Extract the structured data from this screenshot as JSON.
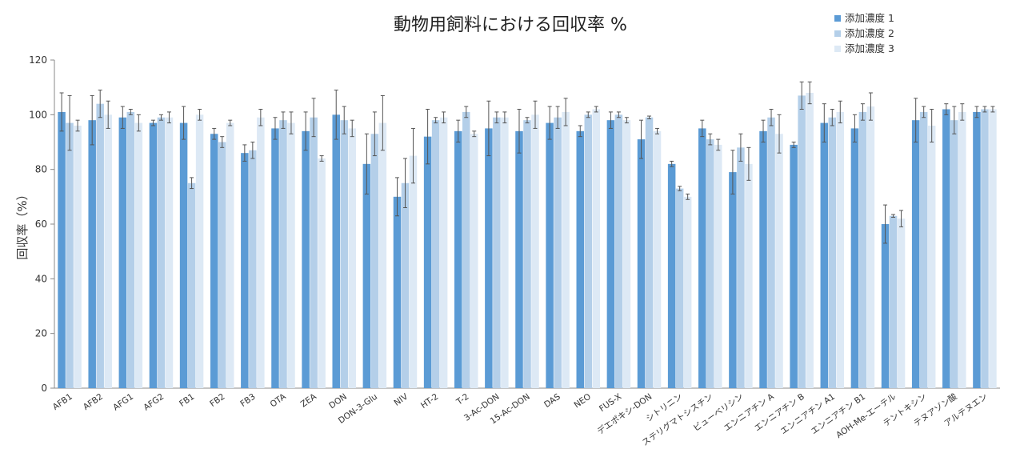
{
  "chart_data": {
    "type": "bar",
    "title": "動物用飼料における回収率 %",
    "xlabel": "",
    "ylabel": "回収率（%）",
    "ylim": [
      0,
      120
    ],
    "yticks": [
      0,
      20,
      40,
      60,
      80,
      100,
      120
    ],
    "grid": false,
    "legend_position": "top-right",
    "colors": [
      "#5b9bd5",
      "#b4cfe9",
      "#dde9f5"
    ],
    "error_color": "#555555",
    "categories": [
      "AFB1",
      "AFB2",
      "AFG1",
      "AFG2",
      "FB1",
      "FB2",
      "FB3",
      "OTA",
      "ZEA",
      "DON",
      "DON-3-Glu",
      "NIV",
      "HT-2",
      "T-2",
      "3-Ac-DON",
      "15-Ac-DON",
      "DAS",
      "NEO",
      "FUS-X",
      "デエポキシ-DON",
      "シトリニン",
      "ステリグマトシスチン",
      "ビューベリシン",
      "エンニアチン A",
      "エンニアチン B",
      "エンニアチン A1",
      "エンニアチン B1",
      "AOH-Me-エーテル",
      "テントキシン",
      "テヌアゾン酸",
      "アルテヌエン"
    ],
    "series": [
      {
        "name": "添加濃度 1",
        "values": [
          101,
          98,
          99,
          97,
          97,
          93,
          86,
          95,
          94,
          100,
          82,
          70,
          92,
          94,
          95,
          94,
          97,
          94,
          98,
          91,
          82,
          95,
          79,
          94,
          89,
          97,
          95,
          60,
          98,
          102,
          101
        ],
        "errors": [
          7,
          9,
          4,
          1,
          6,
          2,
          3,
          4,
          7,
          9,
          11,
          7,
          10,
          4,
          10,
          8,
          6,
          2,
          3,
          7,
          1,
          3,
          8,
          4,
          1,
          7,
          5,
          7,
          8,
          2,
          2
        ]
      },
      {
        "name": "添加濃度 2",
        "values": [
          97,
          104,
          101,
          99,
          75,
          90,
          87,
          98,
          99,
          98,
          93,
          75,
          98,
          101,
          99,
          98,
          99,
          100,
          100,
          99,
          73,
          91,
          88,
          99,
          107,
          99,
          101,
          63,
          101,
          98,
          102
        ],
        "errors": [
          10,
          5,
          1,
          1,
          2,
          2,
          3,
          3,
          7,
          5,
          8,
          9,
          1,
          2,
          2,
          1,
          4,
          1,
          1,
          0.5,
          0.8,
          2,
          5,
          3,
          5,
          3,
          3,
          0.5,
          2,
          5,
          1
        ]
      },
      {
        "name": "添加濃度 3",
        "values": [
          96,
          100,
          97,
          99,
          100,
          97,
          99,
          97,
          84,
          95,
          97,
          85,
          99,
          93,
          99,
          100,
          101,
          102,
          98,
          94,
          70,
          89,
          82,
          93,
          108,
          101,
          103,
          62,
          96,
          101,
          102
        ],
        "errors": [
          2,
          5,
          3,
          2,
          2,
          1,
          3,
          4,
          1,
          3,
          10,
          10,
          2,
          1,
          2,
          5,
          5,
          1,
          1,
          1,
          1,
          2,
          6,
          7,
          4,
          4,
          5,
          3,
          6,
          3,
          1
        ]
      }
    ]
  }
}
